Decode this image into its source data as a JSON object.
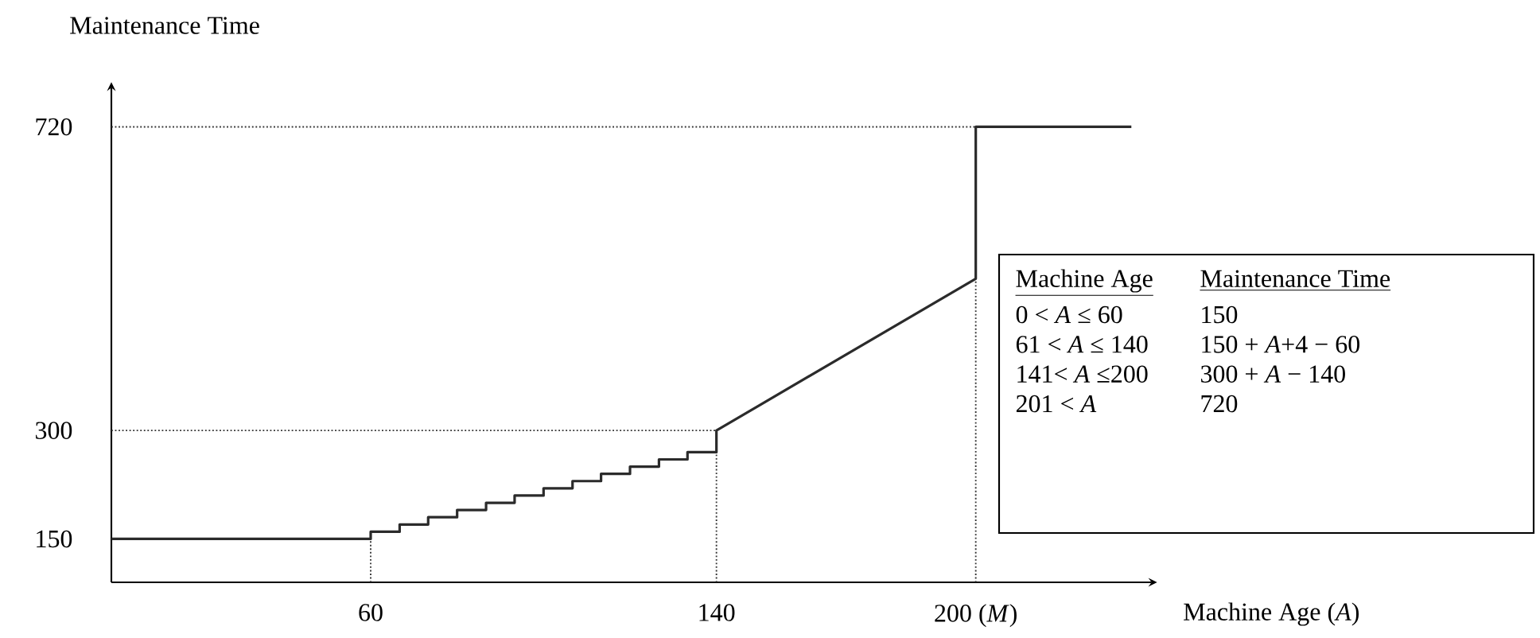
{
  "chart_data": {
    "type": "line",
    "xlabel": "Machine Age (*A*)",
    "ylabel": "Maintenance Time",
    "color": "#2b2b2b",
    "x": [
      0,
      60,
      60,
      66.7,
      66.7,
      73.3,
      73.3,
      80,
      80,
      86.7,
      86.7,
      93.3,
      93.3,
      100,
      100,
      106.7,
      106.7,
      113.3,
      113.3,
      120,
      120,
      126.7,
      126.7,
      133.3,
      133.3,
      140,
      140,
      200,
      200,
      236
    ],
    "values": [
      150,
      150,
      160,
      160,
      170,
      170,
      180,
      180,
      190,
      190,
      200,
      200,
      210,
      210,
      220,
      220,
      230,
      230,
      240,
      240,
      250,
      250,
      260,
      260,
      270,
      270,
      300,
      510,
      720,
      720
    ],
    "xlim": [
      0,
      240
    ],
    "xticks": [
      60,
      140,
      {
        "value": 200,
        "label": "200 (*M*)"
      }
    ],
    "ylim": [
      90,
      770
    ],
    "yticks": [
      150,
      300,
      720
    ],
    "ref_lines": [
      {
        "axis": "x",
        "value": 60,
        "line_style": "dotted",
        "color": "#333333"
      },
      {
        "axis": "x",
        "value": 140,
        "line_style": "dotted",
        "color": "#333333"
      },
      {
        "axis": "x",
        "value": 200,
        "line_style": "dotted",
        "color": "#333333"
      },
      {
        "axis": "y",
        "value": 300,
        "line_style": "dotted",
        "color": "#333333"
      },
      {
        "axis": "y",
        "value": 720,
        "line_style": "dotted",
        "color": "#333333"
      }
    ],
    "annotations": [
      "Machine Age",
      "Maintenance Time",
      "0 < *A* ≤ 60",
      "150",
      "61 < *A* ≤ 140",
      "150 + *A*+4 − 60",
      "141< *A* ≤200",
      "300 + *A* − 140",
      "201 < *A*",
      "720"
    ]
  }
}
